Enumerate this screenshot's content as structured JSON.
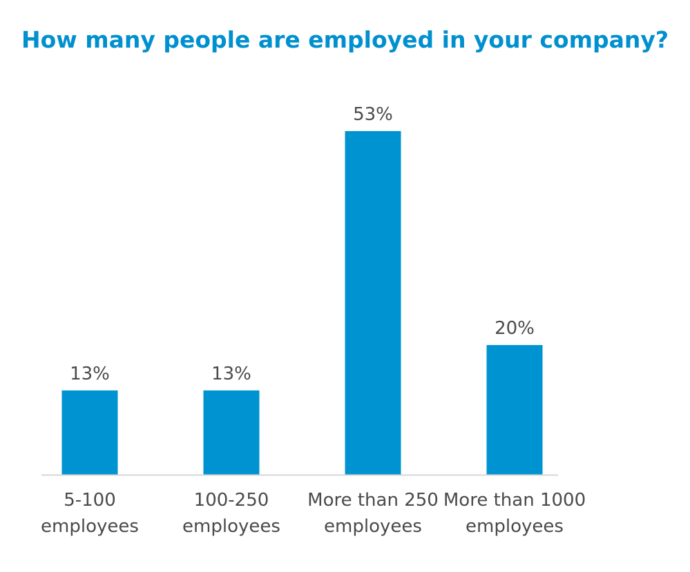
{
  "colors": {
    "title": "#0090d0",
    "bar": "#0093d2",
    "baseline": "#d6d6d6",
    "text": "#4a4a4a"
  },
  "chart_data": {
    "type": "bar",
    "title": "How many people are employed in your company?",
    "xlabel": "",
    "ylabel": "",
    "categories": [
      [
        "5-100",
        "employees"
      ],
      [
        "100-250",
        "employees"
      ],
      [
        "More than 250",
        "employees"
      ],
      [
        "More than 1000",
        "employees"
      ]
    ],
    "values": [
      13,
      13,
      53,
      20
    ],
    "value_labels": [
      "13%",
      "13%",
      "53%",
      "20%"
    ],
    "unit": "%",
    "ylim": [
      0,
      53
    ],
    "grid": false,
    "legend": "none"
  }
}
